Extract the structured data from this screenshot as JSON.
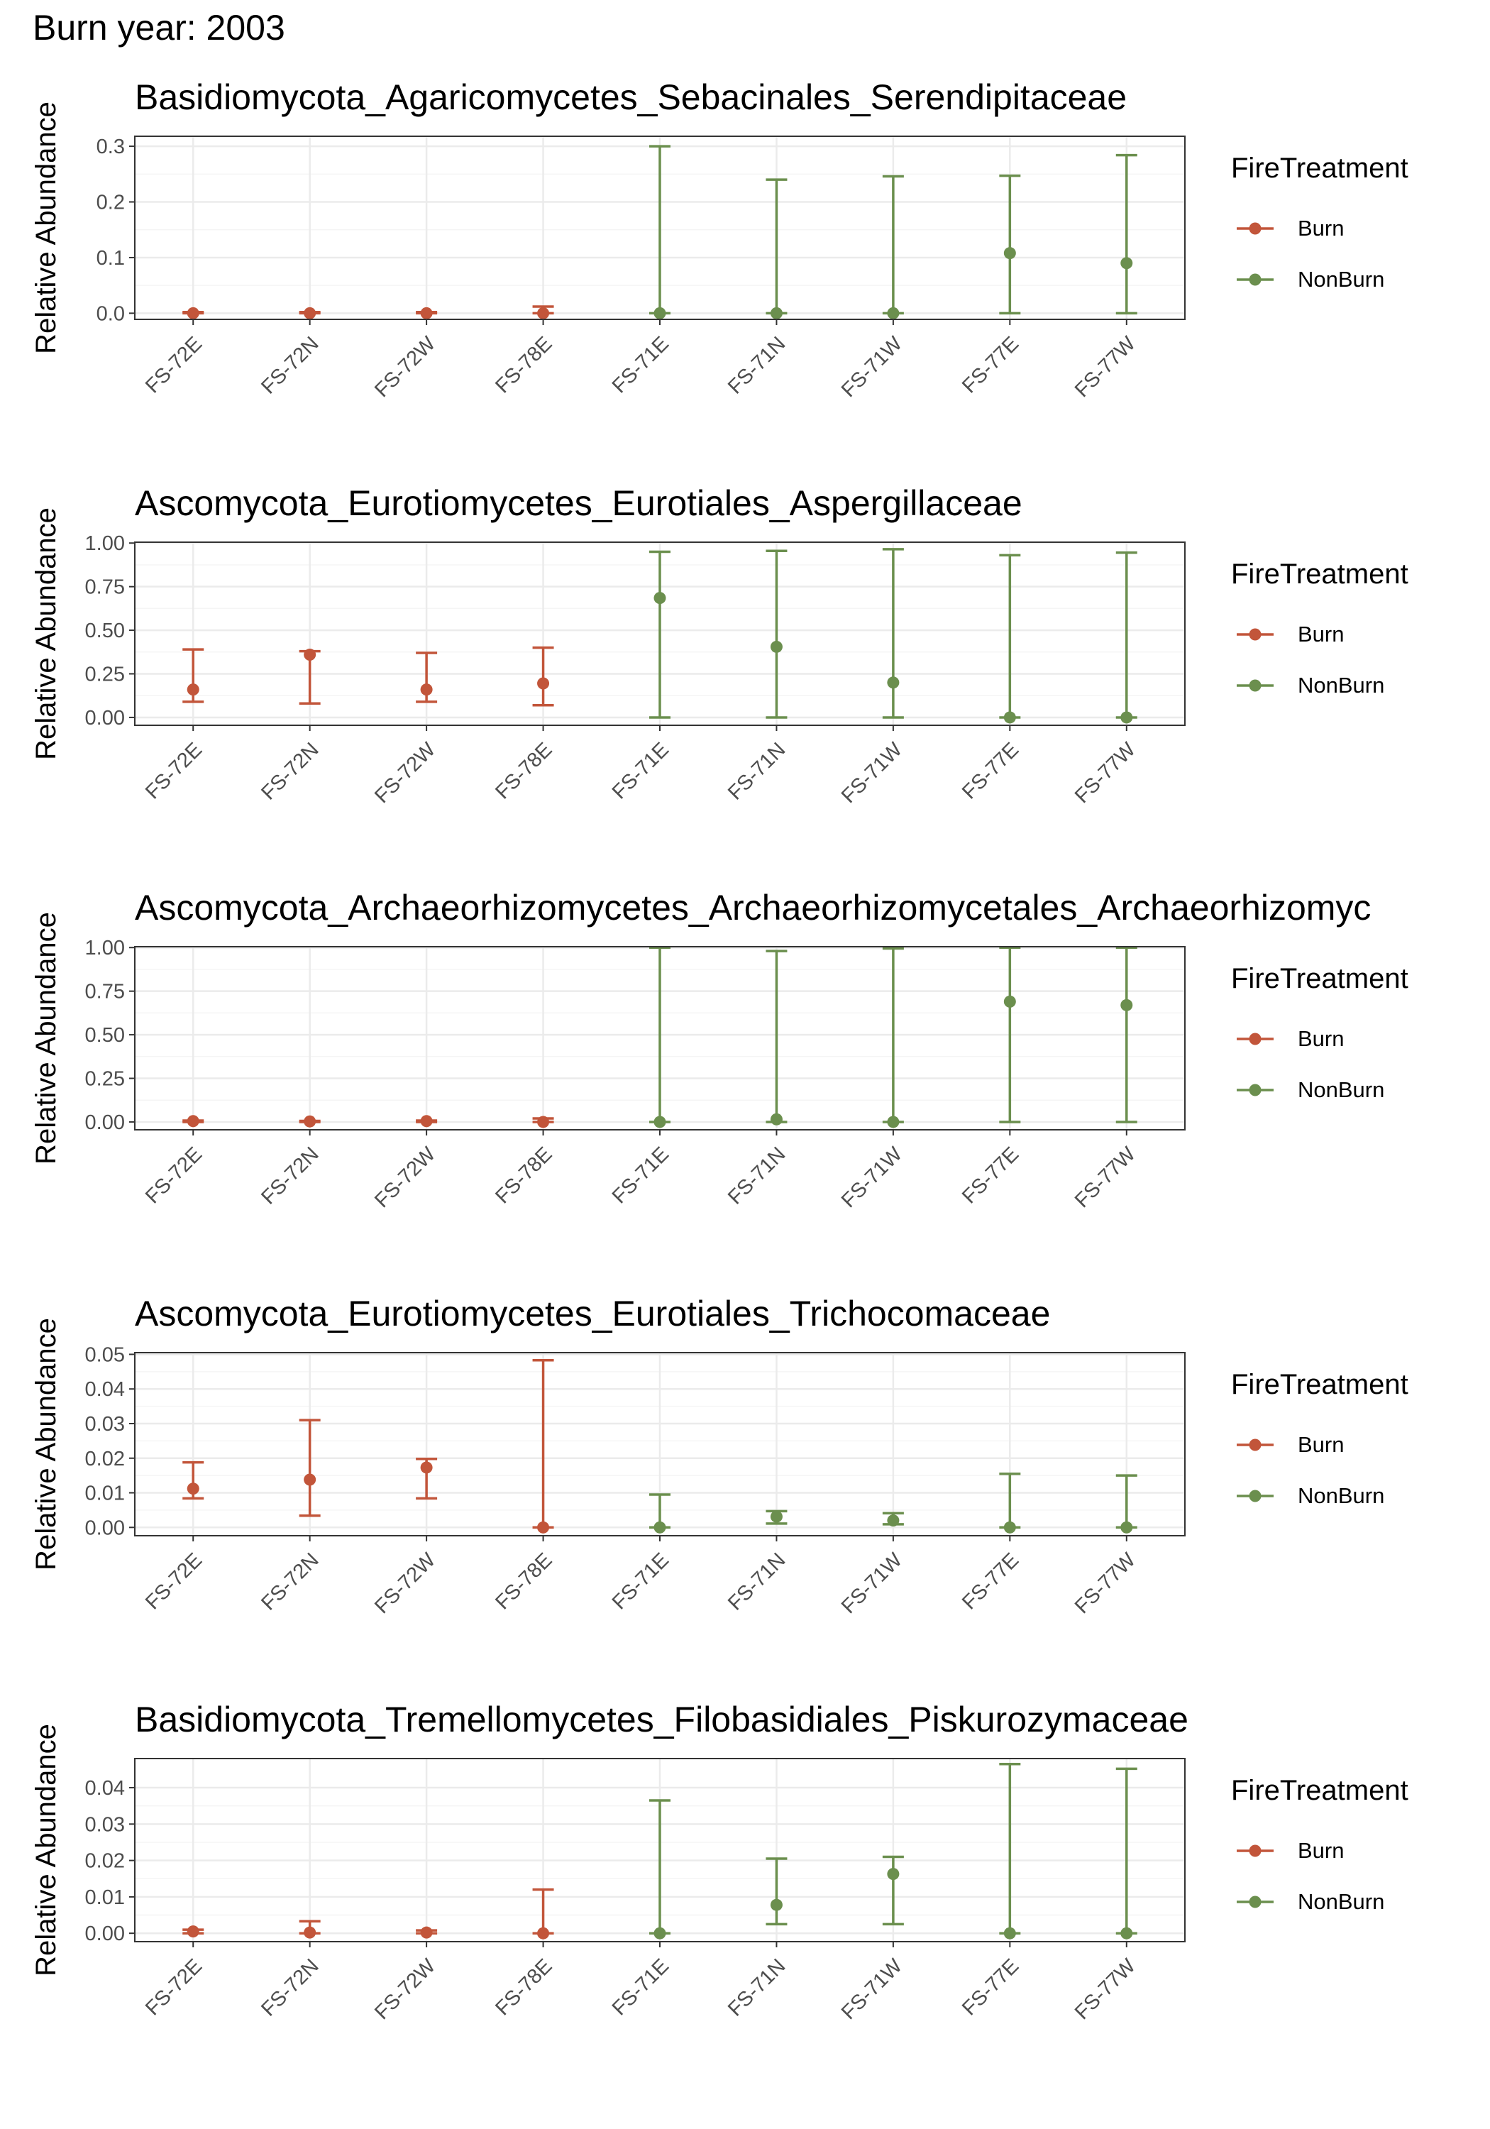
{
  "figure_title": "Burn year: 2003",
  "colors": {
    "Burn": "#c2553a",
    "NonBurn": "#6b8f4e",
    "grid_major": "#ebebeb",
    "grid_minor": "#f5f5f5",
    "panel_border": "#333333",
    "tick_text": "#4d4d4d"
  },
  "legend": {
    "title": "FireTreatment",
    "items": [
      "Burn",
      "NonBurn"
    ]
  },
  "chart_data": [
    {
      "type": "errorbar-point",
      "title": "Basidiomycota_Agaricomycetes_Sebacinales_Serendipitaceae",
      "ylabel": "Relative Abundance",
      "categories": [
        "FS-72E",
        "FS-72N",
        "FS-72W",
        "FS-78E",
        "FS-71E",
        "FS-71N",
        "FS-71W",
        "FS-77E",
        "FS-77W"
      ],
      "treatment": [
        "Burn",
        "Burn",
        "Burn",
        "Burn",
        "NonBurn",
        "NonBurn",
        "NonBurn",
        "NonBurn",
        "NonBurn"
      ],
      "values": [
        0,
        0,
        0,
        0,
        0,
        0,
        0,
        0.108,
        0.09
      ],
      "lower": [
        0,
        0,
        0,
        0,
        0,
        0,
        0,
        0,
        0
      ],
      "upper": [
        0.002,
        0.002,
        0.002,
        0.012,
        0.3,
        0.24,
        0.246,
        0.247,
        0.284
      ],
      "ylim": [
        -0.011,
        0.318
      ],
      "yticks": [
        0.0,
        0.1,
        0.2,
        0.3
      ],
      "ytick_labels": [
        "0.0",
        "0.1",
        "0.2",
        "0.3"
      ],
      "grid": true,
      "legend": "right"
    },
    {
      "type": "errorbar-point",
      "title": "Ascomycota_Eurotiomycetes_Eurotiales_Aspergillaceae",
      "ylabel": "Relative Abundance",
      "categories": [
        "FS-72E",
        "FS-72N",
        "FS-72W",
        "FS-78E",
        "FS-71E",
        "FS-71N",
        "FS-71W",
        "FS-77E",
        "FS-77W"
      ],
      "treatment": [
        "Burn",
        "Burn",
        "Burn",
        "Burn",
        "NonBurn",
        "NonBurn",
        "NonBurn",
        "NonBurn",
        "NonBurn"
      ],
      "values": [
        0.16,
        0.36,
        0.16,
        0.195,
        0.685,
        0.405,
        0.2,
        0,
        0
      ],
      "lower": [
        0.09,
        0.08,
        0.09,
        0.07,
        0,
        0,
        0,
        0,
        0
      ],
      "upper": [
        0.39,
        0.38,
        0.37,
        0.4,
        0.95,
        0.955,
        0.965,
        0.93,
        0.945
      ],
      "ylim": [
        -0.045,
        1.005
      ],
      "yticks": [
        0,
        0.25,
        0.5,
        0.75,
        1.0
      ],
      "ytick_labels": [
        "0.00",
        "0.25",
        "0.50",
        "0.75",
        "1.00"
      ],
      "grid": true,
      "legend": "right"
    },
    {
      "type": "errorbar-point",
      "title": "Ascomycota_Archaeorhizomycetes_Archaeorhizomycetales_Archaeorhizomyc",
      "ylabel": "Relative Abundance",
      "categories": [
        "FS-72E",
        "FS-72N",
        "FS-72W",
        "FS-78E",
        "FS-71E",
        "FS-71N",
        "FS-71W",
        "FS-77E",
        "FS-77W"
      ],
      "treatment": [
        "Burn",
        "Burn",
        "Burn",
        "Burn",
        "NonBurn",
        "NonBurn",
        "NonBurn",
        "NonBurn",
        "NonBurn"
      ],
      "values": [
        0.005,
        0.003,
        0.005,
        0,
        0,
        0.015,
        0,
        0.69,
        0.67
      ],
      "lower": [
        0,
        0,
        0,
        0,
        0,
        0,
        0,
        0,
        0
      ],
      "upper": [
        0.008,
        0.006,
        0.008,
        0.02,
        1.0,
        0.98,
        0.995,
        1.0,
        1.0
      ],
      "ylim": [
        -0.045,
        1.005
      ],
      "yticks": [
        0,
        0.25,
        0.5,
        0.75,
        1.0
      ],
      "ytick_labels": [
        "0.00",
        "0.25",
        "0.50",
        "0.75",
        "1.00"
      ],
      "grid": true,
      "legend": "right"
    },
    {
      "type": "errorbar-point",
      "title": "Ascomycota_Eurotiomycetes_Eurotiales_Trichocomaceae",
      "ylabel": "Relative Abundance",
      "categories": [
        "FS-72E",
        "FS-72N",
        "FS-72W",
        "FS-78E",
        "FS-71E",
        "FS-71N",
        "FS-71W",
        "FS-77E",
        "FS-77W"
      ],
      "treatment": [
        "Burn",
        "Burn",
        "Burn",
        "Burn",
        "NonBurn",
        "NonBurn",
        "NonBurn",
        "NonBurn",
        "NonBurn"
      ],
      "values": [
        0.0112,
        0.0138,
        0.0173,
        0,
        0,
        0.0031,
        0.002,
        0,
        0
      ],
      "lower": [
        0.0084,
        0.0034,
        0.0084,
        0,
        0,
        0.0011,
        0.0009,
        0,
        0
      ],
      "upper": [
        0.0188,
        0.031,
        0.0198,
        0.0483,
        0.0095,
        0.0047,
        0.0041,
        0.0155,
        0.015
      ],
      "ylim": [
        -0.0024,
        0.0505
      ],
      "yticks": [
        0,
        0.01,
        0.02,
        0.03,
        0.04,
        0.05
      ],
      "ytick_labels": [
        "0.00",
        "0.01",
        "0.02",
        "0.03",
        "0.04",
        "0.05"
      ],
      "grid": true,
      "legend": "right"
    },
    {
      "type": "errorbar-point",
      "title": "Basidiomycota_Tremellomycetes_Filobasidiales_Piskurozymaceae",
      "ylabel": "Relative Abundance",
      "categories": [
        "FS-72E",
        "FS-72N",
        "FS-72W",
        "FS-78E",
        "FS-71E",
        "FS-71N",
        "FS-71W",
        "FS-77E",
        "FS-77W"
      ],
      "treatment": [
        "Burn",
        "Burn",
        "Burn",
        "Burn",
        "NonBurn",
        "NonBurn",
        "NonBurn",
        "NonBurn",
        "NonBurn"
      ],
      "values": [
        0.0005,
        0.0002,
        0.0002,
        0,
        0,
        0.0078,
        0.0163,
        0,
        0
      ],
      "lower": [
        0,
        0,
        0,
        0,
        0,
        0.0025,
        0.0025,
        0,
        0
      ],
      "upper": [
        0.001,
        0.0033,
        0.0008,
        0.012,
        0.0365,
        0.0205,
        0.021,
        0.0465,
        0.0452
      ],
      "ylim": [
        -0.0023,
        0.048
      ],
      "yticks": [
        0,
        0.01,
        0.02,
        0.03,
        0.04
      ],
      "ytick_labels": [
        "0.00",
        "0.01",
        "0.02",
        "0.03",
        "0.04"
      ],
      "grid": true,
      "legend": "right"
    }
  ]
}
